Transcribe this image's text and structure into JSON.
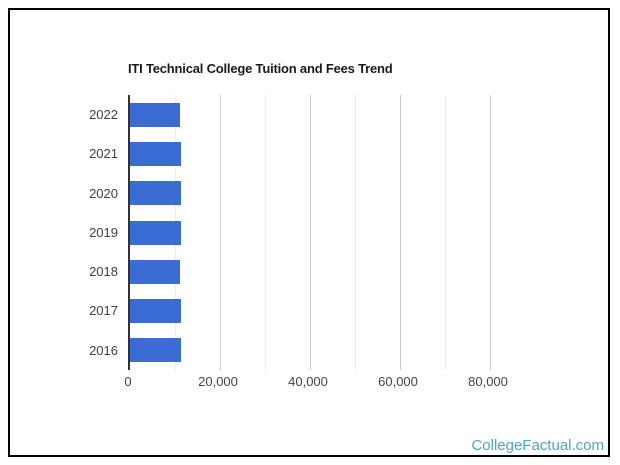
{
  "frame": {
    "background": "#ffffff",
    "border_color": "#000000"
  },
  "chart_data": {
    "type": "bar",
    "orientation": "horizontal",
    "title": "ITI Technical College Tuition and Fees Trend",
    "categories": [
      "2022",
      "2021",
      "2020",
      "2019",
      "2018",
      "2017",
      "2016"
    ],
    "values": [
      11100,
      11250,
      11250,
      11250,
      11100,
      11250,
      11400
    ],
    "xlim": [
      0,
      90000
    ],
    "x_major_ticks": [
      0,
      20000,
      40000,
      60000,
      80000
    ],
    "x_tick_labels": [
      "0",
      "20,000",
      "40,000",
      "60,000",
      "80,000"
    ],
    "x_minor_gridlines": [
      10000,
      30000,
      50000,
      70000
    ],
    "grid": true,
    "legend": "none",
    "bar_color": "#3b6cd3",
    "axis_color": "#333333",
    "gridline_major_color": "#cccccc",
    "gridline_minor_color": "#ececec",
    "title_color": "#1a1a1a",
    "tick_label_color": "#444444",
    "category_label_color": "#404040"
  },
  "footer": {
    "brand": "CollegeFactual.com",
    "color": "#4fa3c7"
  }
}
